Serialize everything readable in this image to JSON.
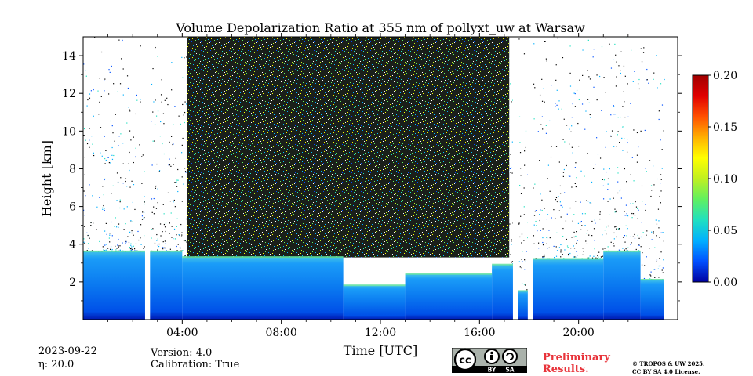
{
  "chart_data": {
    "type": "heatmap",
    "title": "Volume Depolarization Ratio at 355 nm of pollyxt_uw at Warsaw",
    "xlabel": "Time [UTC]",
    "ylabel": "Height [km]",
    "xlim_hours": [
      0,
      24
    ],
    "ylim_km": [
      0,
      15
    ],
    "x_ticks": [
      {
        "hour": 4,
        "label": "04:00"
      },
      {
        "hour": 8,
        "label": "08:00"
      },
      {
        "hour": 12,
        "label": "12:00"
      },
      {
        "hour": 16,
        "label": "16:00"
      },
      {
        "hour": 20,
        "label": "20:00"
      }
    ],
    "y_ticks": [
      {
        "value": 2,
        "label": "2"
      },
      {
        "value": 4,
        "label": "4"
      },
      {
        "value": 6,
        "label": "6"
      },
      {
        "value": 8,
        "label": "8"
      },
      {
        "value": 10,
        "label": "10"
      },
      {
        "value": 12,
        "label": "12"
      },
      {
        "value": 14,
        "label": "14"
      }
    ],
    "colorbar": {
      "min": 0.0,
      "max": 0.2,
      "ticks": [
        {
          "value": 0.0,
          "label": "0.00"
        },
        {
          "value": 0.05,
          "label": "0.05"
        },
        {
          "value": 0.1,
          "label": "0.10"
        },
        {
          "value": 0.15,
          "label": "0.15"
        },
        {
          "value": 0.2,
          "label": "0.20"
        }
      ],
      "colors": [
        "#0000a0",
        "#0050ff",
        "#00b0ff",
        "#20e0c0",
        "#60f060",
        "#c0f020",
        "#ffff00",
        "#ffb000",
        "#ff5000",
        "#e00000",
        "#a00000"
      ]
    },
    "gaps_hours": [
      [
        2.5,
        2.7
      ],
      [
        17.35,
        17.55
      ],
      [
        17.95,
        18.15
      ]
    ],
    "data_end_hour": 23.45,
    "boundary_layer_top_km": [
      {
        "start": 0,
        "end": 4,
        "km": 3.6
      },
      {
        "start": 4,
        "end": 10.5,
        "km": 3.3
      },
      {
        "start": 10.5,
        "end": 13,
        "km": 1.8
      },
      {
        "start": 13,
        "end": 16.5,
        "km": 2.4
      },
      {
        "start": 16.5,
        "end": 17.35,
        "km": 2.9
      },
      {
        "start": 17.55,
        "end": 17.95,
        "km": 1.5
      },
      {
        "start": 18.15,
        "end": 21,
        "km": 3.2
      },
      {
        "start": 21,
        "end": 22.5,
        "km": 3.6
      },
      {
        "start": 22.5,
        "end": 23.45,
        "km": 2.1
      }
    ],
    "noisy_depolarization_band": {
      "start_hour": 4.2,
      "end_hour": 17.2,
      "bottom_km": 3.3,
      "top_km": 15
    }
  },
  "meta": {
    "date": "2023-09-22",
    "eta": "η: 20.0",
    "version": "Version: 4.0",
    "calibration": "Calibration: True",
    "preliminary_line1": "Preliminary",
    "preliminary_line2": "Results.",
    "copyright_line1": "© TROPOS & UW 2025.",
    "copyright_line2": "CC BY SA 4.0 License.",
    "cc_by": "BY",
    "cc_sa": "SA"
  }
}
